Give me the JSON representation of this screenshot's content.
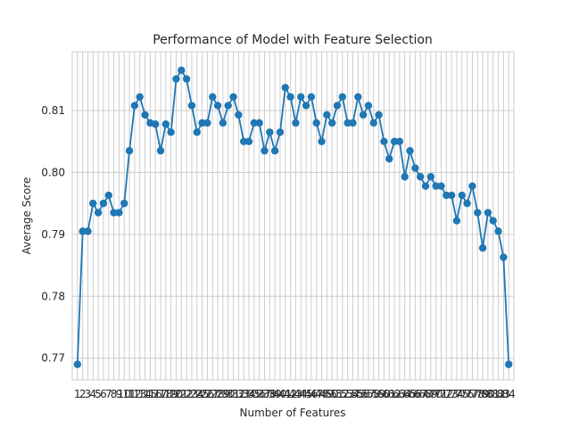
{
  "chart_data": {
    "type": "line",
    "title": "Performance of Model with Feature Selection",
    "xlabel": "Number of Features",
    "ylabel": "Average Score",
    "ylim": [
      0.7665,
      0.8195
    ],
    "xlim": [
      0.0,
      85.0
    ],
    "yticks": [
      0.77,
      0.78,
      0.79,
      0.8,
      0.81
    ],
    "ytick_labels": [
      "0.77",
      "0.78",
      "0.79",
      "0.80",
      "0.81"
    ],
    "grid": true,
    "style": "seaborn-whitegrid",
    "line_color": "#1f77b4",
    "marker": "circle",
    "x": [
      1,
      2,
      3,
      4,
      5,
      6,
      7,
      8,
      9,
      10,
      11,
      12,
      13,
      14,
      15,
      16,
      17,
      18,
      19,
      20,
      21,
      22,
      23,
      24,
      25,
      26,
      27,
      28,
      29,
      30,
      31,
      32,
      33,
      34,
      35,
      36,
      37,
      38,
      39,
      40,
      41,
      42,
      43,
      44,
      45,
      46,
      47,
      48,
      49,
      50,
      51,
      52,
      53,
      54,
      55,
      56,
      57,
      58,
      59,
      60,
      61,
      62,
      63,
      64,
      65,
      66,
      67,
      68,
      69,
      70,
      71,
      72,
      73,
      74,
      75,
      76,
      77,
      78,
      79,
      80,
      81,
      82,
      83,
      84
    ],
    "x_tick_labels": [
      "1",
      "2",
      "3",
      "4",
      "5",
      "6",
      "7",
      "8",
      "9",
      "10",
      "11",
      "12",
      "13",
      "14",
      "15",
      "16",
      "17",
      "18",
      "19",
      "20",
      "21",
      "22",
      "23",
      "24",
      "25",
      "26",
      "27",
      "28",
      "29",
      "30",
      "31",
      "32",
      "33",
      "34",
      "35",
      "36",
      "37",
      "38",
      "39",
      "40",
      "41",
      "42",
      "43",
      "44",
      "45",
      "46",
      "47",
      "48",
      "49",
      "50",
      "51",
      "52",
      "53",
      "54",
      "55",
      "56",
      "57",
      "58",
      "59",
      "60",
      "61",
      "62",
      "63",
      "64",
      "65",
      "66",
      "67",
      "68",
      "69",
      "70",
      "71",
      "72",
      "73",
      "74",
      "75",
      "76",
      "77",
      "78",
      "79",
      "80",
      "81",
      "82",
      "83",
      "84"
    ],
    "series": [
      {
        "values": [
          0.769,
          0.7905,
          0.7905,
          0.795,
          0.7935,
          0.795,
          0.7963,
          0.7935,
          0.7935,
          0.795,
          0.8035,
          0.8108,
          0.8122,
          0.8093,
          0.808,
          0.8078,
          0.8035,
          0.8078,
          0.8065,
          0.8151,
          0.8165,
          0.8151,
          0.8108,
          0.8065,
          0.808,
          0.808,
          0.8122,
          0.8108,
          0.808,
          0.8108,
          0.8122,
          0.8093,
          0.805,
          0.805,
          0.808,
          0.808,
          0.8035,
          0.8065,
          0.8035,
          0.8065,
          0.8137,
          0.8122,
          0.808,
          0.8122,
          0.8108,
          0.8122,
          0.808,
          0.805,
          0.8093,
          0.808,
          0.8108,
          0.8122,
          0.808,
          0.808,
          0.8122,
          0.8093,
          0.8108,
          0.808,
          0.8093,
          0.805,
          0.8022,
          0.805,
          0.805,
          0.7993,
          0.8035,
          0.8007,
          0.7993,
          0.7978,
          0.7993,
          0.7978,
          0.7978,
          0.7963,
          0.7963,
          0.7922,
          0.7963,
          0.795,
          0.7978,
          0.7935,
          0.7878,
          0.7935,
          0.7922,
          0.7905,
          0.7863,
          0.769
        ]
      }
    ]
  }
}
